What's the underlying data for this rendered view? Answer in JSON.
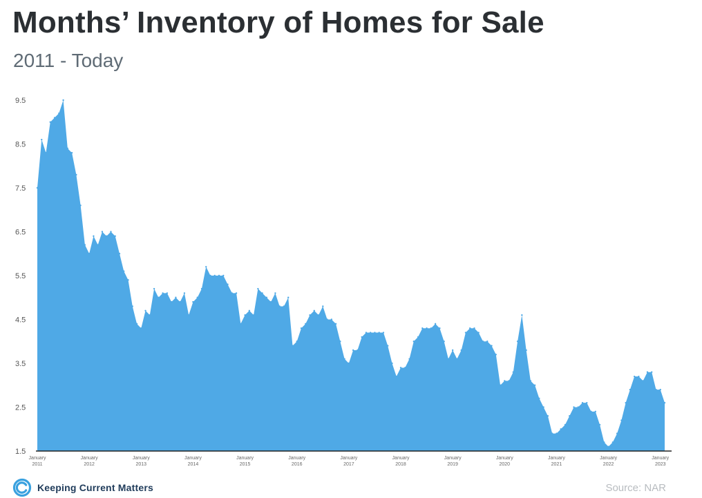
{
  "header": {
    "title": "Months’ Inventory of Homes for Sale",
    "subtitle": "2011 - Today"
  },
  "footer": {
    "brand": "Keeping Current Matters",
    "source": "Source: NAR"
  },
  "colors": {
    "area_fill": "#4fa9e6",
    "axis": "#222222",
    "title": "#2b2f33",
    "subtitle": "#5f6b75",
    "source": "#b8bcc0",
    "brand": "#1f3b5a",
    "brand_icon": "#3aa1df"
  },
  "chart_data": {
    "type": "area",
    "xlabel": "",
    "ylabel": "",
    "ylim": [
      1.5,
      9.5
    ],
    "yticks": [
      1.5,
      2.5,
      3.5,
      4.5,
      5.5,
      6.5,
      7.5,
      8.5,
      9.5
    ],
    "ytick_labels": [
      "1.5",
      "2.5",
      "3.5",
      "4.5",
      "5.5",
      "6.5",
      "7.5",
      "8.5",
      "9.5"
    ],
    "x_tick_labels": [
      [
        "January",
        "2011"
      ],
      [
        "January",
        "2012"
      ],
      [
        "January",
        "2013"
      ],
      [
        "January",
        "2014"
      ],
      [
        "January",
        "2015"
      ],
      [
        "January",
        "2016"
      ],
      [
        "January",
        "2017"
      ],
      [
        "January",
        "2018"
      ],
      [
        "January",
        "2019"
      ],
      [
        "January",
        "2020"
      ],
      [
        "January",
        "2021"
      ],
      [
        "January",
        "2022"
      ],
      [
        "January",
        "2023"
      ]
    ],
    "grid": false,
    "legend": "none",
    "start": "2011-01",
    "end": "2023-01",
    "frequency": "monthly",
    "series": [
      {
        "values": [
          7.5,
          8.6,
          8.3,
          9.0,
          9.1,
          9.2,
          9.5,
          8.4,
          8.3,
          7.8,
          7.1,
          6.2,
          6.0,
          6.4,
          6.2,
          6.5,
          6.4,
          6.5,
          6.4,
          6.0,
          5.6,
          5.4,
          4.8,
          4.4,
          4.3,
          4.7,
          4.6,
          5.2,
          5.0,
          5.1,
          5.1,
          4.9,
          5.0,
          4.9,
          5.1,
          4.6,
          4.9,
          5.0,
          5.2,
          5.7,
          5.5,
          5.5,
          5.5,
          5.5,
          5.3,
          5.1,
          5.1,
          4.4,
          4.6,
          4.7,
          4.6,
          5.2,
          5.1,
          5.0,
          4.9,
          5.1,
          4.8,
          4.8,
          5.0,
          3.9,
          4.0,
          4.3,
          4.4,
          4.6,
          4.7,
          4.6,
          4.8,
          4.5,
          4.5,
          4.4,
          4.0,
          3.6,
          3.5,
          3.8,
          3.8,
          4.1,
          4.2,
          4.2,
          4.2,
          4.2,
          4.2,
          3.9,
          3.5,
          3.2,
          3.4,
          3.4,
          3.6,
          4.0,
          4.1,
          4.3,
          4.3,
          4.3,
          4.4,
          4.3,
          4.0,
          3.6,
          3.8,
          3.6,
          3.8,
          4.2,
          4.3,
          4.3,
          4.2,
          4.0,
          4.0,
          3.9,
          3.7,
          3.0,
          3.1,
          3.1,
          3.3,
          4.0,
          4.6,
          3.8,
          3.1,
          3.0,
          2.7,
          2.5,
          2.3,
          1.9,
          1.9,
          2.0,
          2.1,
          2.3,
          2.5,
          2.5,
          2.6,
          2.6,
          2.4,
          2.4,
          2.1,
          1.7,
          1.6,
          1.7,
          1.9,
          2.2,
          2.6,
          2.9,
          3.2,
          3.2,
          3.1,
          3.3,
          3.3,
          2.9,
          2.9,
          2.6
        ]
      }
    ]
  }
}
